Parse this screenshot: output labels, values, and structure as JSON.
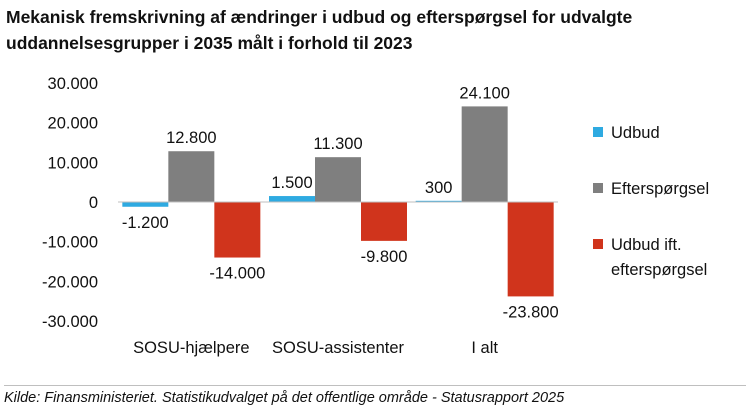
{
  "chart_data": {
    "type": "bar",
    "title": "Mekanisk fremskrivning af ændringer i udbud og efterspørgsel for udvalgte uddannelsesgrupper i 2035 målt i forhold til 2023",
    "categories": [
      "SOSU-hjælpere",
      "SOSU-assistenter",
      "I alt"
    ],
    "series": [
      {
        "name": "Udbud",
        "color": "#2eaae1",
        "values": [
          -1200,
          1500,
          300
        ],
        "labels": [
          "-1.200",
          "1.500",
          "300"
        ]
      },
      {
        "name": "Efterspørgsel",
        "color": "#7f7f7f",
        "values": [
          12800,
          11300,
          24100
        ],
        "labels": [
          "12.800",
          "11.300",
          "24.100"
        ]
      },
      {
        "name": "Udbud ift. efterspørgsel",
        "name_lines": [
          "Udbud ift.",
          "efterspørgsel"
        ],
        "color": "#d0341c",
        "values": [
          -14000,
          -9800,
          -23800
        ],
        "labels": [
          "-14.000",
          "-9.800",
          "-23.800"
        ]
      }
    ],
    "ylim": [
      -30000,
      30000
    ],
    "yticks": [
      30000,
      20000,
      10000,
      0,
      -10000,
      -20000,
      -30000
    ],
    "ytick_labels": [
      "30.000",
      "20.000",
      "10.000",
      "0",
      "-10.000",
      "-20.000",
      "-30.000"
    ],
    "grid": false,
    "legend_position": "right",
    "source": "Kilde: Finansministeriet. Statistikudvalget på det offentlige område - Statusrapport 2025"
  }
}
